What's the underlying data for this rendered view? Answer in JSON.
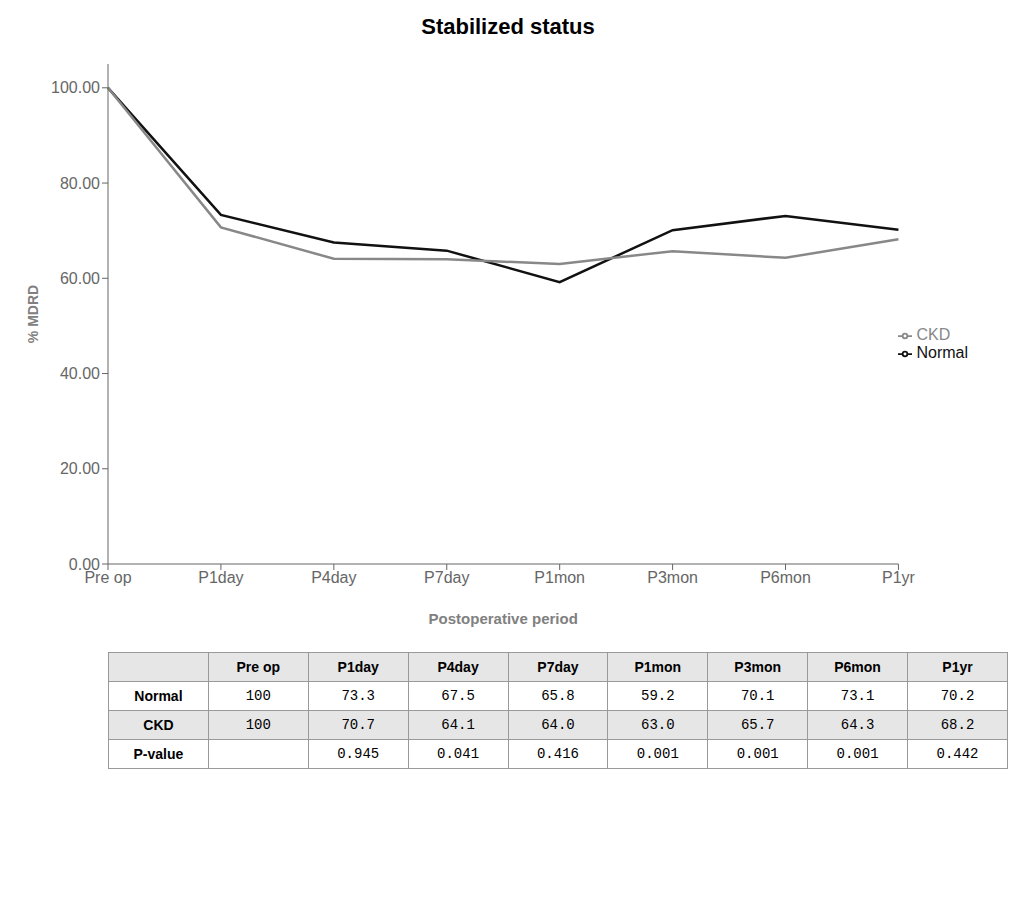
{
  "chart_data": {
    "type": "line",
    "title": "Stabilized status",
    "x_label": "Postoperative period",
    "y_label": "% MDRD",
    "categories": [
      "Pre op",
      "P1day",
      "P4day",
      "P7day",
      "P1mon",
      "P3mon",
      "P6mon",
      "P1yr"
    ],
    "series": [
      {
        "name": "Normal",
        "color": "#111111",
        "values": [
          100.0,
          73.3,
          67.5,
          65.8,
          59.2,
          70.1,
          73.1,
          70.2
        ]
      },
      {
        "name": "CKD",
        "color": "#888888",
        "values": [
          100.0,
          70.7,
          64.1,
          64.0,
          63.0,
          65.7,
          64.3,
          68.2
        ]
      }
    ],
    "ylim": [
      0,
      105
    ],
    "yticks": [
      {
        "value": 0,
        "label": "0.00"
      },
      {
        "value": 20,
        "label": "20.00"
      },
      {
        "value": 40,
        "label": "40.00"
      },
      {
        "value": 60,
        "label": "60.00"
      },
      {
        "value": 80,
        "label": "80.00"
      },
      {
        "value": 100,
        "label": "100.00"
      }
    ],
    "grid": false,
    "legend": "right",
    "table": {
      "columns": [
        "Pre op",
        "P1day",
        "P4day",
        "P7day",
        "P1mon",
        "P3mon",
        "P6mon",
        "P1yr"
      ],
      "rows": [
        {
          "label": "Normal",
          "cells": [
            "100",
            "73.3",
            "67.5",
            "65.8",
            "59.2",
            "70.1",
            "73.1",
            "70.2"
          ]
        },
        {
          "label": "CKD",
          "cells": [
            "100",
            "70.7",
            "64.1",
            "64.0",
            "63.0",
            "65.7",
            "64.3",
            "68.2"
          ]
        },
        {
          "label": "P-value",
          "cells": [
            null,
            "0.945",
            "0.041",
            "0.416",
            "0.001",
            "0.001",
            "0.001",
            "0.442"
          ]
        }
      ]
    }
  }
}
